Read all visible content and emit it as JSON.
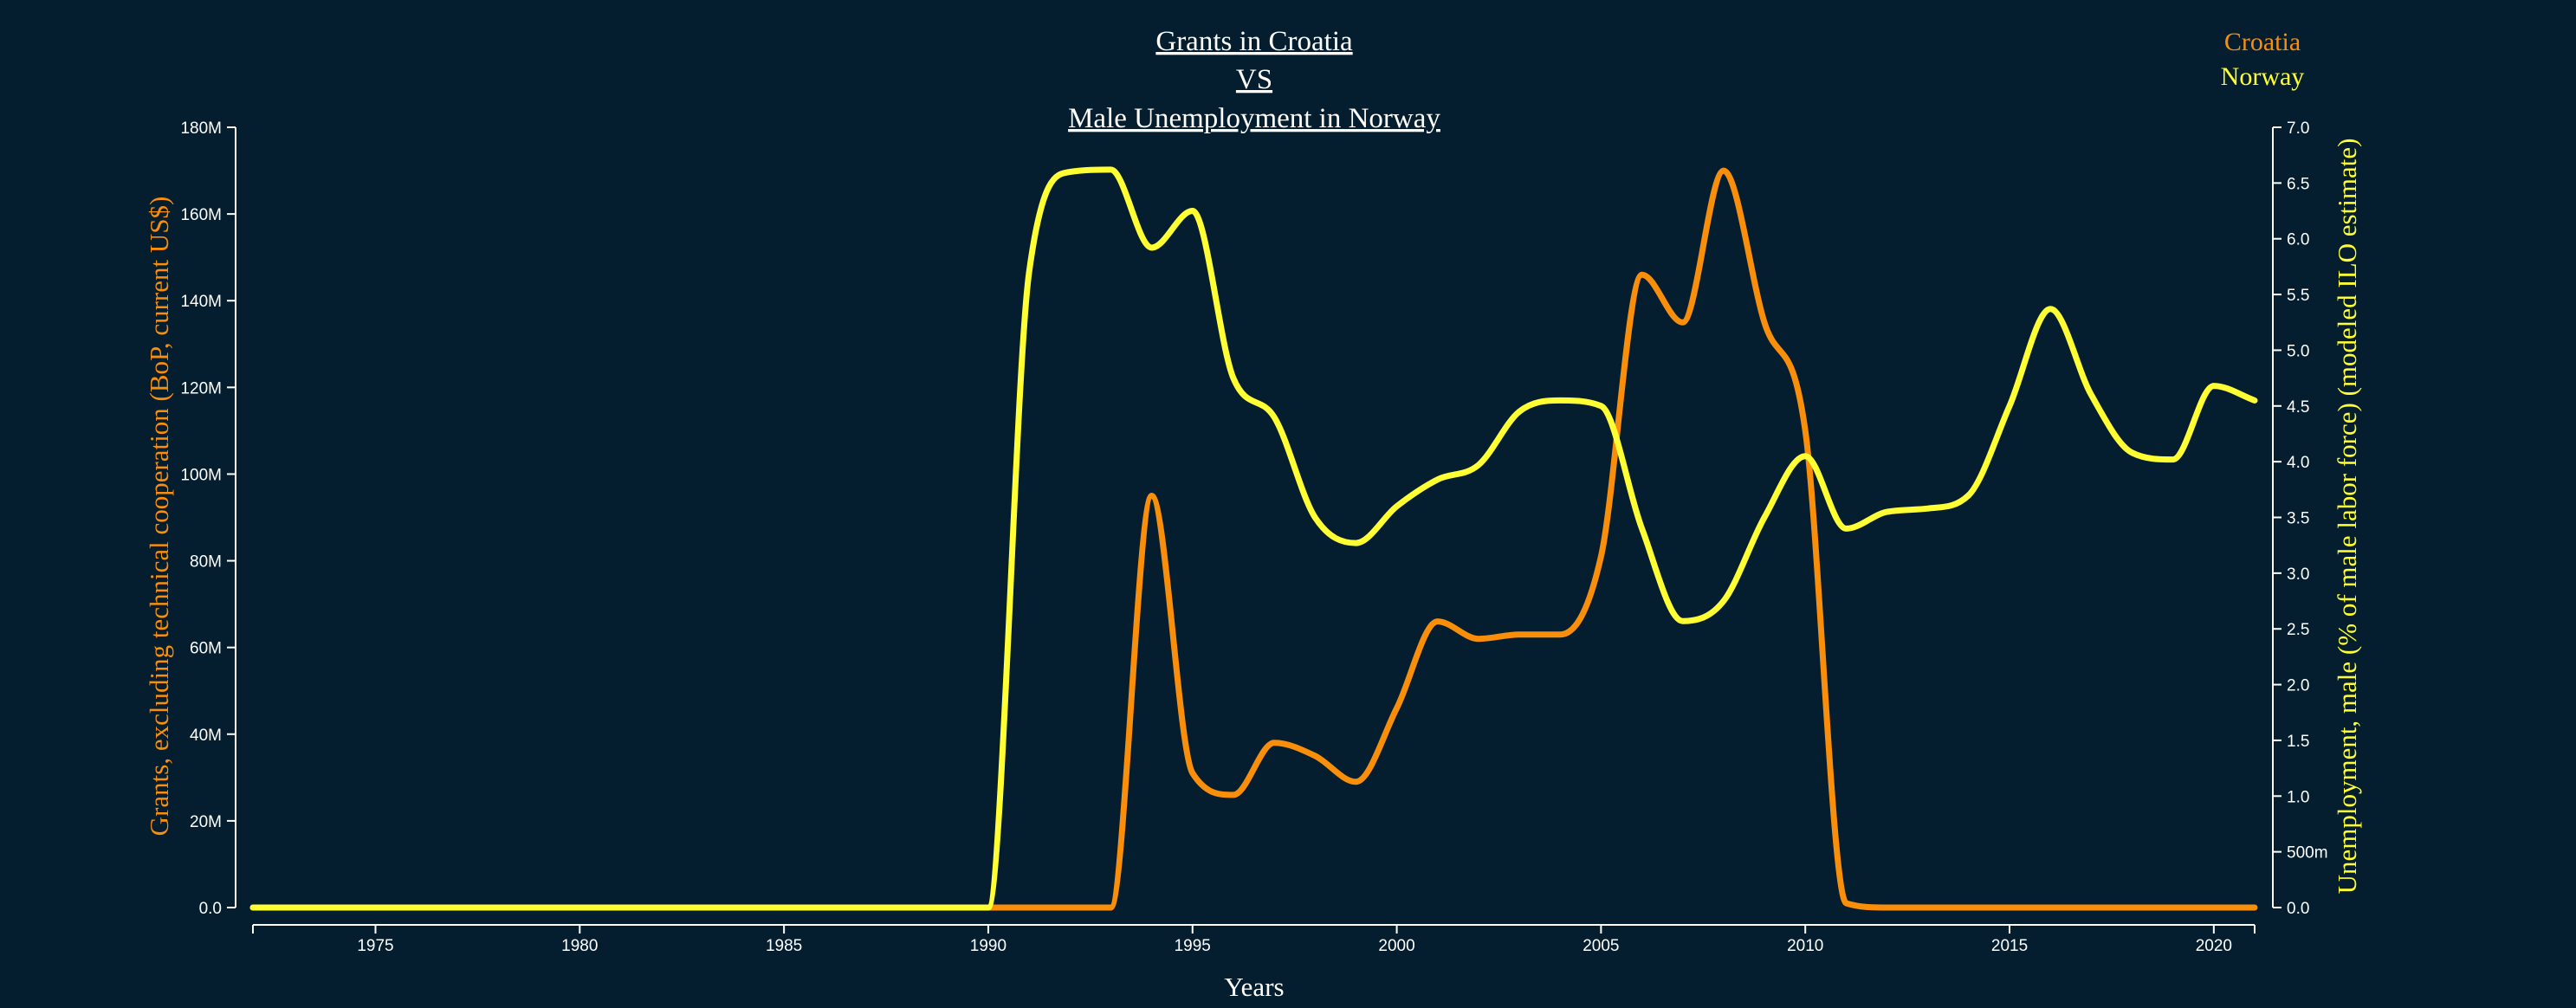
{
  "chart_data": {
    "type": "line",
    "title": [
      "Grants in Croatia",
      "VS",
      "Male Unemployment in Norway"
    ],
    "xlabel": "Years",
    "ylabel_left": "Grants, excluding technical cooperation (BoP, current US$)",
    "ylabel_right": "Unemployment, male (% of male labor force) (modeled ILO estimate)",
    "x": [
      1972,
      1973,
      1974,
      1975,
      1976,
      1977,
      1978,
      1979,
      1980,
      1981,
      1982,
      1983,
      1984,
      1985,
      1986,
      1987,
      1988,
      1989,
      1990,
      1991,
      1992,
      1993,
      1994,
      1995,
      1996,
      1997,
      1998,
      1999,
      2000,
      2001,
      2002,
      2003,
      2004,
      2005,
      2006,
      2007,
      2008,
      2009,
      2010,
      2011,
      2012,
      2013,
      2014,
      2015,
      2016,
      2017,
      2018,
      2019,
      2020,
      2021
    ],
    "xlim": [
      1972,
      2021
    ],
    "x_ticks": [
      1975,
      1980,
      1985,
      1990,
      1995,
      2000,
      2005,
      2010,
      2015,
      2020
    ],
    "y_left_lim": [
      0,
      180000000
    ],
    "y_left_ticks": [
      0,
      20000000,
      40000000,
      60000000,
      80000000,
      100000000,
      120000000,
      140000000,
      160000000,
      180000000
    ],
    "y_left_tick_labels": [
      "0.0",
      "20M",
      "40M",
      "60M",
      "80M",
      "100M",
      "120M",
      "140M",
      "160M",
      "180M"
    ],
    "y_right_lim": [
      0,
      7
    ],
    "y_right_ticks": [
      0,
      0.5,
      1,
      1.5,
      2,
      2.5,
      3,
      3.5,
      4,
      4.5,
      5,
      5.5,
      6,
      6.5,
      7
    ],
    "y_right_tick_labels": [
      "0.0",
      "500m",
      "1.0",
      "1.5",
      "2.0",
      "2.5",
      "3.0",
      "3.5",
      "4.0",
      "4.5",
      "5.0",
      "5.5",
      "6.0",
      "6.5",
      "7.0"
    ],
    "series": [
      {
        "name": "Croatia",
        "axis": "left",
        "color": "#f98e0b",
        "values": [
          0,
          0,
          0,
          0,
          0,
          0,
          0,
          0,
          0,
          0,
          0,
          0,
          0,
          0,
          0,
          0,
          0,
          0,
          0,
          0,
          0,
          0,
          95000000,
          31000000,
          26000000,
          38000000,
          35000000,
          29000000,
          46000000,
          66000000,
          62000000,
          63000000,
          63000000,
          81000000,
          146000000,
          135000000,
          170000000,
          135000000,
          110000000,
          1000000,
          0,
          0,
          0,
          0,
          0,
          0,
          0,
          0,
          0,
          0
        ]
      },
      {
        "name": "Norway",
        "axis": "right",
        "color": "#ffff33",
        "values": [
          0,
          0,
          0,
          0,
          0,
          0,
          0,
          0,
          0,
          0,
          0,
          0,
          0,
          0,
          0,
          0,
          0,
          0,
          0,
          5.7,
          6.6,
          6.62,
          5.92,
          6.25,
          4.75,
          4.4,
          3.5,
          3.27,
          3.6,
          3.84,
          3.97,
          4.45,
          4.55,
          4.5,
          3.4,
          2.57,
          2.75,
          3.5,
          4.05,
          3.4,
          3.55,
          3.58,
          3.7,
          4.5,
          5.37,
          4.6,
          4.08,
          4.02,
          4.68,
          4.55
        ]
      }
    ],
    "legend_placement": "top-right",
    "grid": false
  }
}
